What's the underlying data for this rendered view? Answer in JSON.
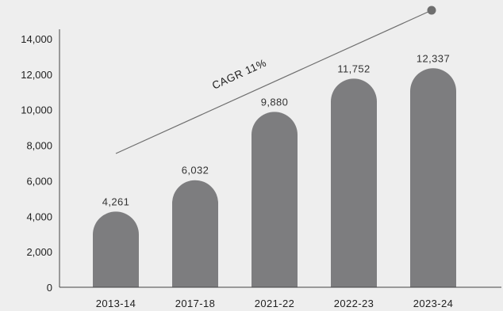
{
  "colors": {
    "background": "#eeeeee",
    "bar": "#7d7d7f",
    "axis": "#444444",
    "text": "#1f1f1f",
    "trend": "#6e6e6e"
  },
  "chart_data": {
    "type": "bar",
    "title": "",
    "xlabel": "",
    "ylabel": "",
    "categories": [
      "2013-14",
      "2017-18",
      "2021-22",
      "2022-23",
      "2023-24"
    ],
    "values": [
      4261,
      6032,
      9880,
      11752,
      12337
    ],
    "value_labels": [
      "4,261",
      "6,032",
      "9,880",
      "11,752",
      "12,337"
    ],
    "ylim": [
      0,
      14000
    ],
    "y_ticks": [
      0,
      2000,
      4000,
      6000,
      8000,
      10000,
      12000,
      14000
    ],
    "y_tick_labels": [
      "0",
      "2,000",
      "4,000",
      "6,000",
      "8,000",
      "10,000",
      "12,000",
      "14,000"
    ],
    "bar_shape": "rounded-top",
    "grid": false,
    "legend": "none",
    "annotation": {
      "text": "CAGR 11%",
      "kind": "trend-arrow"
    }
  }
}
